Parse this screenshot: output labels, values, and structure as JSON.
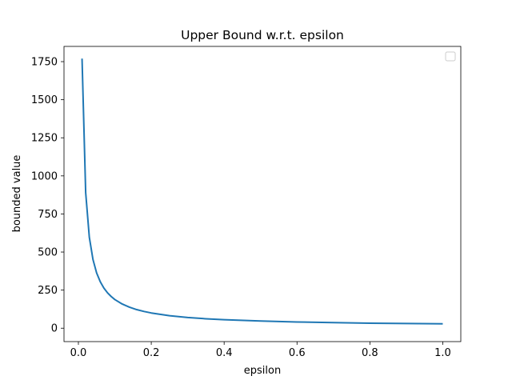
{
  "chart_data": {
    "type": "line",
    "title": "Upper Bound w.r.t. epsilon",
    "xlabel": "epsilon",
    "ylabel": "bounded value",
    "xlim": [
      -0.0395,
      1.0495
    ],
    "ylim": [
      -88,
      1850
    ],
    "xticks": [
      0.0,
      0.2,
      0.4,
      0.6,
      0.8,
      1.0
    ],
    "xtick_labels": [
      "0.0",
      "0.2",
      "0.4",
      "0.6",
      "0.8",
      "1.0"
    ],
    "yticks": [
      0,
      250,
      500,
      750,
      1000,
      1250,
      1500,
      1750
    ],
    "ytick_labels": [
      "0",
      "250",
      "500",
      "750",
      "1000",
      "1250",
      "1500",
      "1750"
    ],
    "grid": false,
    "legend": {
      "placement": "upper right",
      "entries": []
    },
    "series": [
      {
        "color": "#1f77b4",
        "x": [
          0.01,
          0.02,
          0.03,
          0.04,
          0.05,
          0.06,
          0.07,
          0.08,
          0.09,
          0.1,
          0.12,
          0.14,
          0.16,
          0.18,
          0.2,
          0.25,
          0.3,
          0.35,
          0.4,
          0.5,
          0.6,
          0.7,
          0.8,
          0.9,
          1.0
        ],
        "y": [
          1770,
          890,
          597,
          451,
          363,
          305,
          263,
          232,
          208,
          188,
          159,
          138,
          122,
          110,
          100,
          82,
          70,
          62,
          56,
          47,
          41,
          37,
          33,
          31,
          29
        ]
      }
    ]
  }
}
